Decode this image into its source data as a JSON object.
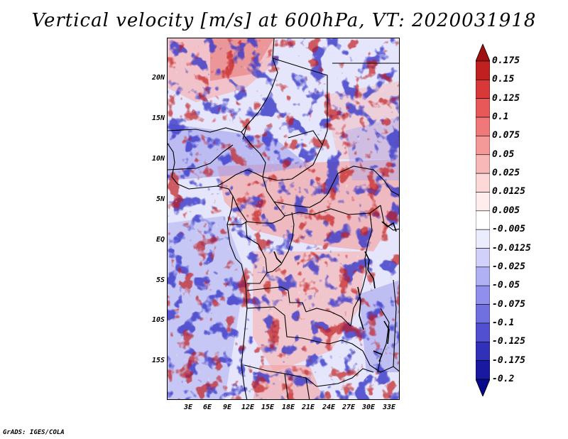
{
  "title": "Vertical velocity [m/s] at 600hPa, VT: 2020031918",
  "credit": "GrADS: IGES/COLA",
  "map": {
    "region": "Central and Southern Africa",
    "variable": "Vertical velocity",
    "units": "m/s",
    "level": "600hPa",
    "valid_time": "2020031918"
  },
  "lat_labels": [
    "20N",
    "15N",
    "10N",
    "5N",
    "EQ",
    "5S",
    "10S",
    "15S"
  ],
  "lon_labels": [
    "3E",
    "6E",
    "9E",
    "12E",
    "15E",
    "18E",
    "21E",
    "24E",
    "27E",
    "30E",
    "33E"
  ],
  "colorbar": {
    "labels": [
      "0.175",
      "0.15",
      "0.125",
      "0.1",
      "0.075",
      "0.05",
      "0.025",
      "0.0125",
      "0.005",
      "-0.005",
      "-0.0125",
      "-0.025",
      "-0.05",
      "-0.075",
      "-0.1",
      "-0.125",
      "-0.175",
      "-0.2"
    ],
    "colors": [
      "#a01010",
      "#c02020",
      "#d83838",
      "#e85858",
      "#f07878",
      "#f49898",
      "#f8b8b8",
      "#fcd8d8",
      "#ffecec",
      "#ffffff",
      "#ececff",
      "#d0d0fa",
      "#b0b0f4",
      "#9090ec",
      "#7070e0",
      "#5050d0",
      "#3030b8",
      "#1818a0",
      "#08088a"
    ]
  }
}
